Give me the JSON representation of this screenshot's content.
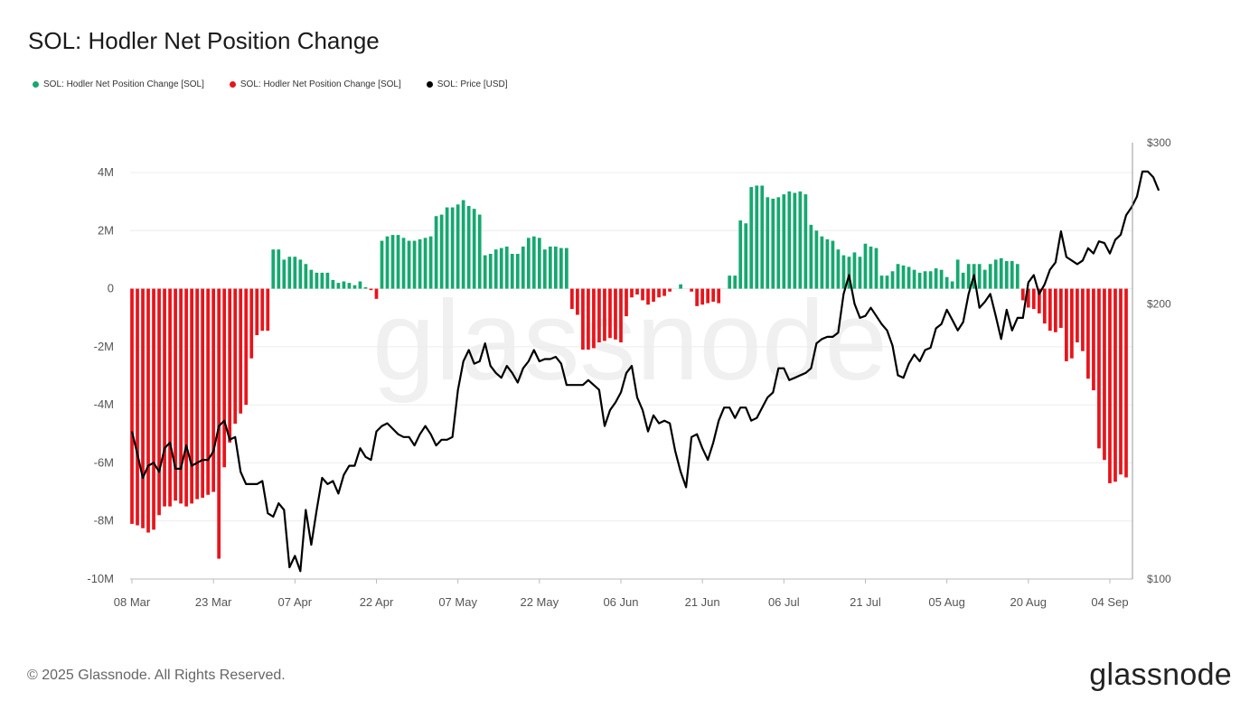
{
  "title": "SOL: Hodler Net Position Change",
  "legend": [
    {
      "label": "SOL: Hodler Net Position Change [SOL]",
      "color": "#16a870"
    },
    {
      "label": "SOL: Hodler Net Position Change [SOL]",
      "color": "#e8141b"
    },
    {
      "label": "SOL: Price [USD]",
      "color": "#000000"
    }
  ],
  "watermark": "glassnode",
  "footer": {
    "copyright": "© 2025 Glassnode. All Rights Reserved.",
    "brand": "glassnode"
  },
  "chart_data": {
    "type": "bar",
    "title": "SOL: Hodler Net Position Change",
    "x_tick_labels": [
      "08 Mar",
      "23 Mar",
      "07 Apr",
      "22 Apr",
      "07 May",
      "22 May",
      "06 Jun",
      "21 Jun",
      "06 Jul",
      "21 Jul",
      "05 Aug",
      "20 Aug",
      "04 Sep"
    ],
    "y_left": {
      "min": -10000000,
      "max": 4000000,
      "ticks": [
        4000000,
        2000000,
        0,
        -2000000,
        -4000000,
        -6000000,
        -8000000,
        -10000000
      ],
      "tick_labels": [
        "4M",
        "2M",
        "0",
        "-2M",
        "-4M",
        "-6M",
        "-8M",
        "-10M"
      ]
    },
    "y_right": {
      "scale": "log",
      "ticks": [
        300,
        200,
        100
      ],
      "tick_labels": [
        "$300",
        "$200",
        "$100"
      ]
    },
    "grid": "horizontal",
    "legend_position": "top-left",
    "colors": {
      "positive": "#16a870",
      "negative": "#e8141b",
      "price": "#000000"
    },
    "series": [
      {
        "name": "SOL: Hodler Net Position Change [SOL]",
        "kind": "bar",
        "values": [
          -8100000,
          -8150000,
          -8250000,
          -8400000,
          -8300000,
          -7800000,
          -7500000,
          -7500000,
          -7300000,
          -7400000,
          -7500000,
          -7400000,
          -7250000,
          -7200000,
          -7100000,
          -7000000,
          -9300000,
          -6150000,
          -5300000,
          -4650000,
          -4300000,
          -4000000,
          -2400000,
          -1600000,
          -1450000,
          -1450000,
          1350000,
          1350000,
          1000000,
          1100000,
          1100000,
          1000000,
          850000,
          650000,
          550000,
          550000,
          550000,
          300000,
          200000,
          250000,
          200000,
          120000,
          250000,
          50000,
          -50000,
          -350000,
          1650000,
          1800000,
          1850000,
          1850000,
          1750000,
          1650000,
          1650000,
          1700000,
          1750000,
          1800000,
          2500000,
          2550000,
          2800000,
          2800000,
          2900000,
          3050000,
          2850000,
          2750000,
          2550000,
          1150000,
          1200000,
          1350000,
          1400000,
          1450000,
          1200000,
          1200000,
          1450000,
          1750000,
          1800000,
          1750000,
          1350000,
          1450000,
          1450000,
          1400000,
          1400000,
          -700000,
          -900000,
          -2100000,
          -2100000,
          -2050000,
          -1850000,
          -1800000,
          -1700000,
          -1750000,
          -1850000,
          -950000,
          -300000,
          -200000,
          -400000,
          -550000,
          -450000,
          -300000,
          -250000,
          -100000,
          0,
          150000,
          0,
          -100000,
          -600000,
          -550000,
          -500000,
          -450000,
          -500000,
          0,
          450000,
          450000,
          2350000,
          2250000,
          3500000,
          3550000,
          3550000,
          3150000,
          3100000,
          3150000,
          3250000,
          3350000,
          3300000,
          3350000,
          3250000,
          2200000,
          2000000,
          1800000,
          1700000,
          1650000,
          1350000,
          1150000,
          1100000,
          1250000,
          1100000,
          1550000,
          1450000,
          1400000,
          450000,
          450000,
          600000,
          850000,
          800000,
          750000,
          650000,
          550000,
          600000,
          600000,
          700000,
          650000,
          400000,
          250000,
          1000000,
          550000,
          850000,
          850000,
          850000,
          650000,
          850000,
          1000000,
          1050000,
          950000,
          950000,
          850000,
          -400000,
          -650000,
          -700000,
          -850000,
          -1200000,
          -1450000,
          -1500000,
          -1350000,
          -2500000,
          -2400000,
          -1850000,
          -2150000,
          -3100000,
          -3500000,
          -5500000,
          -5900000,
          -6700000,
          -6650000,
          -6400000,
          -6500000
        ]
      },
      {
        "name": "SOL: Price [USD]",
        "kind": "line",
        "values": [
          145,
          137,
          129,
          133,
          134,
          131,
          139,
          141,
          132,
          132,
          140,
          133,
          134,
          135,
          135,
          138,
          147,
          149,
          142,
          143,
          131,
          127,
          127,
          127,
          128,
          118,
          117,
          121,
          119,
          103,
          106,
          102,
          119,
          109,
          119,
          129,
          127,
          128,
          124,
          130,
          133,
          133,
          139,
          136,
          135,
          145,
          147,
          148,
          146,
          144,
          143,
          143,
          140,
          144,
          147,
          144,
          140,
          142,
          142,
          143,
          161,
          173,
          178,
          172,
          173,
          181,
          171,
          168,
          166,
          171,
          168,
          164,
          170,
          173,
          178,
          173,
          174,
          174,
          175,
          172,
          163,
          163,
          163,
          163,
          165,
          163,
          161,
          147,
          153,
          156,
          160,
          168,
          171,
          158,
          153,
          145,
          151,
          148,
          149,
          148,
          138,
          131,
          126,
          143,
          144,
          139,
          135,
          141,
          149,
          154,
          154,
          150,
          154,
          154,
          149,
          150,
          154,
          158,
          160,
          170,
          170,
          165,
          166,
          167,
          168,
          170,
          181,
          183,
          184,
          184,
          186,
          205,
          215,
          200,
          193,
          194,
          198,
          194,
          190,
          187,
          180,
          167,
          166,
          172,
          176,
          173,
          178,
          179,
          188,
          190,
          197,
          192,
          187,
          191,
          205,
          215,
          198,
          201,
          205,
          194,
          183,
          197,
          187,
          193,
          193,
          211,
          215,
          205,
          210,
          218,
          222,
          240,
          225,
          223,
          221,
          223,
          230,
          227,
          234,
          233,
          227,
          235,
          238,
          250,
          255,
          262,
          279,
          279,
          275,
          266
        ]
      }
    ]
  }
}
